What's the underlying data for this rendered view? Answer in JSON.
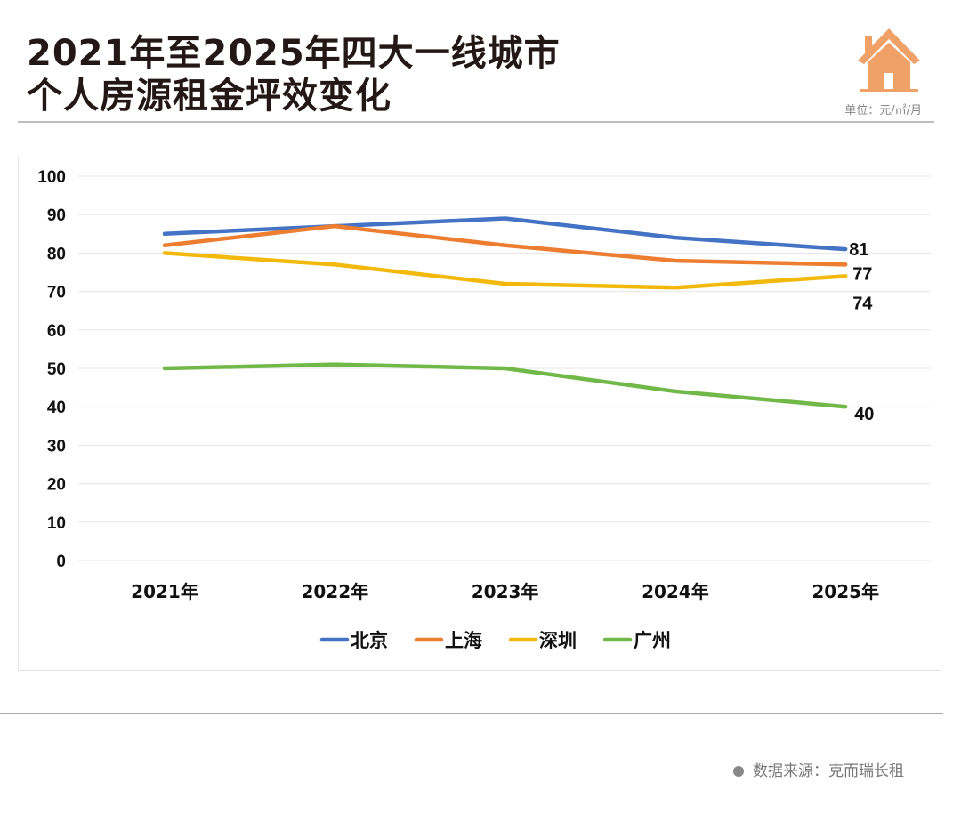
{
  "header": {
    "title_line1": "2021年至2025年四大一线城市",
    "title_line2": "个人房源租金坪效变化",
    "unit": "单位：元/㎡/月",
    "icon": "house-icon",
    "icon_color": "#f0a167"
  },
  "footer": {
    "source": "数据来源：克而瑞长租"
  },
  "chart_data": {
    "type": "line",
    "categories": [
      "2021年",
      "2022年",
      "2023年",
      "2024年",
      "2025年"
    ],
    "ylim": [
      0,
      100
    ],
    "yticks": [
      0,
      10,
      20,
      30,
      40,
      50,
      60,
      70,
      80,
      90,
      100
    ],
    "grid": true,
    "legend_position": "bottom",
    "series": [
      {
        "name": "北京",
        "color": "#4472c4",
        "values": [
          85,
          87,
          89,
          84,
          81
        ],
        "end_label": "81"
      },
      {
        "name": "上海",
        "color": "#ed7d31",
        "values": [
          82,
          87,
          82,
          78,
          77
        ],
        "end_label": "77"
      },
      {
        "name": "深圳",
        "color": "#f2b90c",
        "values": [
          80,
          77,
          72,
          71,
          74
        ],
        "end_label": "74"
      },
      {
        "name": "广州",
        "color": "#70b949",
        "values": [
          50,
          51,
          50,
          44,
          40
        ],
        "end_label": "40"
      }
    ]
  }
}
